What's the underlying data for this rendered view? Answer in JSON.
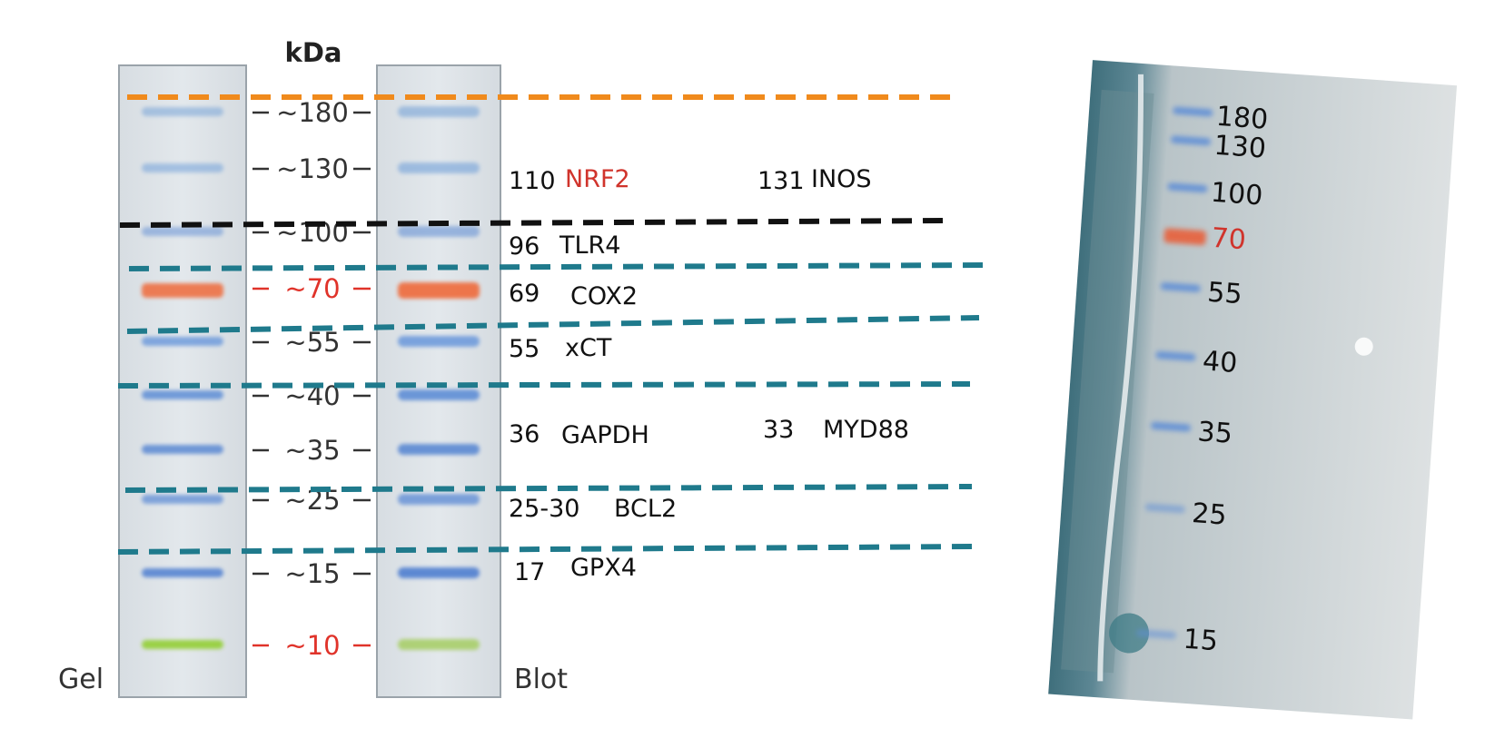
{
  "header": {
    "unit_label": "kDa"
  },
  "lanes": {
    "gel_label": "Gel",
    "blot_label": "Blot"
  },
  "ladder": [
    {
      "label": "~180",
      "kda": 180,
      "color": "#7fa8d8",
      "highlight": false
    },
    {
      "label": "~130",
      "kda": 130,
      "color": "#7aa6da",
      "highlight": false
    },
    {
      "label": "~100",
      "kda": 100,
      "color": "#6f98d6",
      "highlight": false
    },
    {
      "label": "~70",
      "kda": 70,
      "color": "#ef6a3a",
      "highlight": true
    },
    {
      "label": "~55",
      "kda": 55,
      "color": "#6f9bdc",
      "highlight": false
    },
    {
      "label": "~40",
      "kda": 40,
      "color": "#5f8ed6",
      "highlight": false
    },
    {
      "label": "~35",
      "kda": 35,
      "color": "#5b89d3",
      "highlight": false
    },
    {
      "label": "~25",
      "kda": 25,
      "color": "#6f98d8",
      "highlight": false
    },
    {
      "label": "~15",
      "kda": 15,
      "color": "#4f7fd0",
      "highlight": false
    },
    {
      "label": "~10",
      "kda": 10,
      "color": "#8fce2a",
      "highlight": true
    }
  ],
  "proteins": [
    {
      "size": "110",
      "name": "NRF2",
      "color": "#d0342c"
    },
    {
      "size": "131",
      "name": "INOS",
      "color": "#111111"
    },
    {
      "size": "96",
      "name": "TLR4",
      "color": "#111111"
    },
    {
      "size": "69",
      "name": "COX2",
      "color": "#111111"
    },
    {
      "size": "55",
      "name": "xCT",
      "color": "#111111"
    },
    {
      "size": "36",
      "name": "GAPDH",
      "color": "#111111"
    },
    {
      "size": "33",
      "name": "MYD88",
      "color": "#111111"
    },
    {
      "size": "25-30",
      "name": "BCL2",
      "color": "#111111"
    },
    {
      "size": "17",
      "name": "GPX4",
      "color": "#111111"
    }
  ],
  "cutlines": [
    {
      "color": "#f08a1c"
    },
    {
      "color": "#111111"
    },
    {
      "color": "#1f7a8c"
    },
    {
      "color": "#1f7a8c"
    },
    {
      "color": "#1f7a8c"
    },
    {
      "color": "#1f7a8c"
    },
    {
      "color": "#1f7a8c"
    }
  ],
  "photo_markers": [
    "180",
    "130",
    "100",
    "70",
    "55",
    "40",
    "35",
    "25",
    "15"
  ],
  "colors": {
    "highlight_red": "#e0332a",
    "marker_red": "#d0342c",
    "band_blue": "#5f8ed6"
  }
}
